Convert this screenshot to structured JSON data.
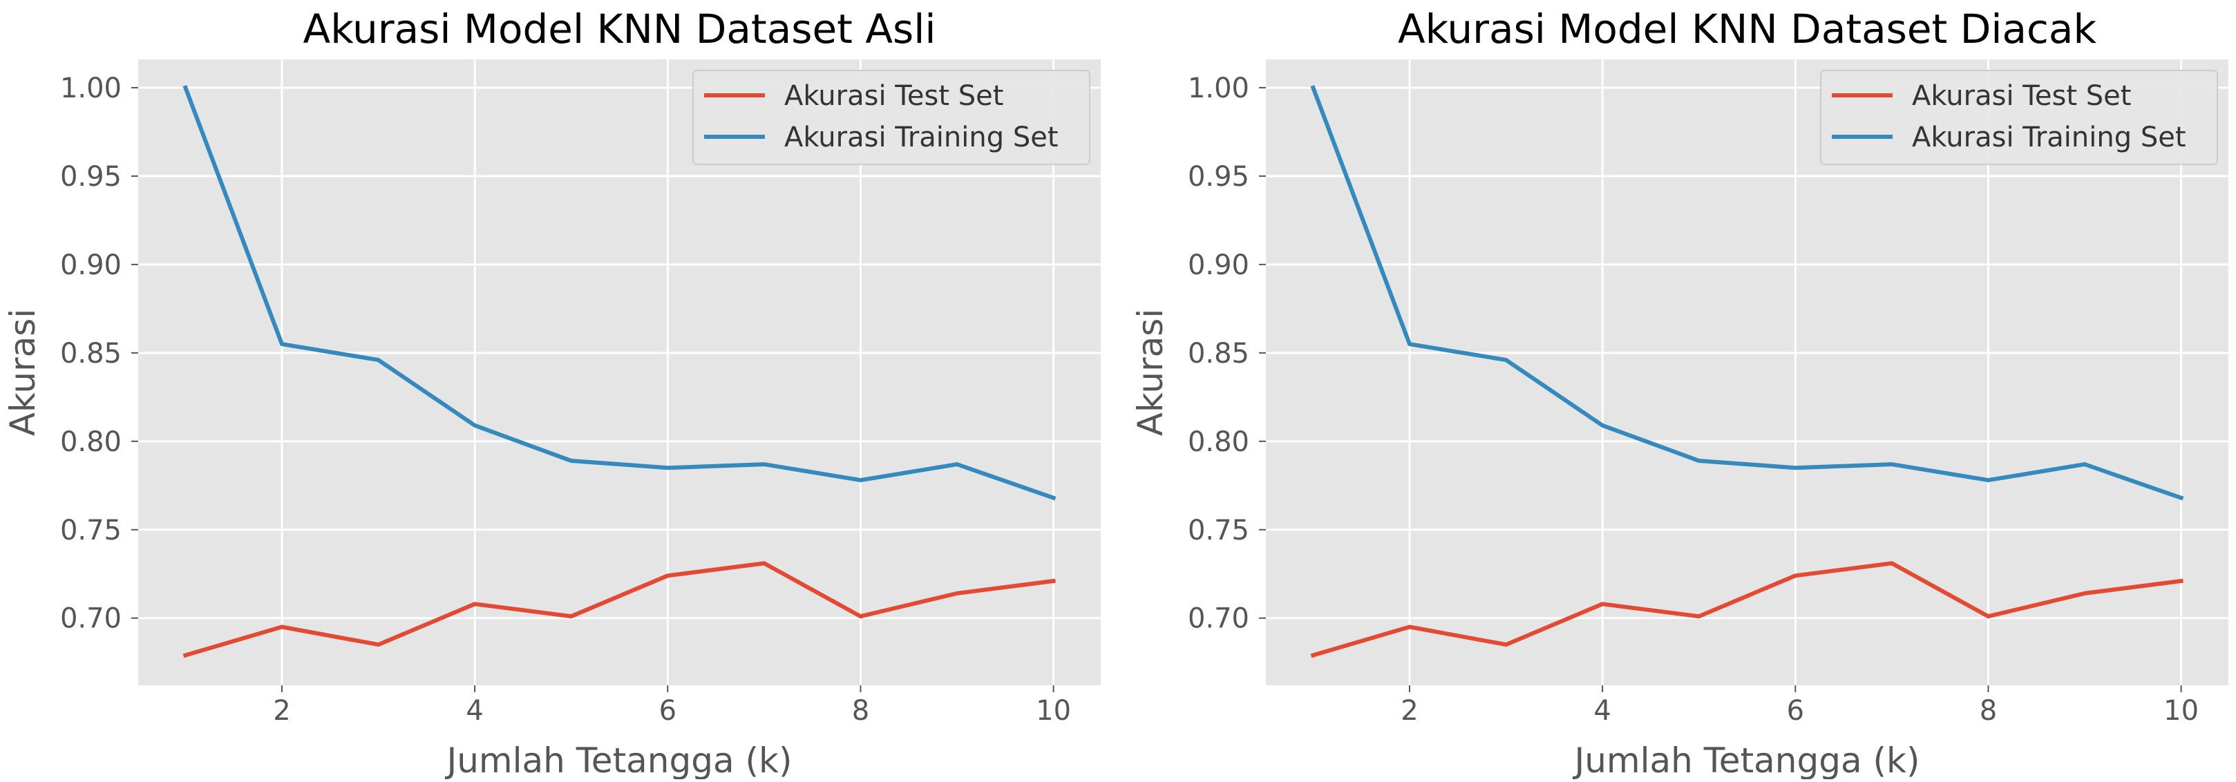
{
  "chart_data": [
    {
      "type": "line",
      "title": "Akurasi Model KNN Dataset Asli",
      "xlabel": "Jumlah Tetangga (k)",
      "ylabel": "Akurasi",
      "xlim": [
        0.51,
        10.49
      ],
      "ylim": [
        0.662,
        1.016
      ],
      "xticks": [
        2,
        4,
        6,
        8,
        10
      ],
      "xtick_labels": [
        "2",
        "4",
        "6",
        "8",
        "10"
      ],
      "yticks": [
        0.7,
        0.75,
        0.8,
        0.85,
        0.9,
        0.95,
        1.0
      ],
      "ytick_labels": [
        "0.70",
        "0.75",
        "0.80",
        "0.85",
        "0.90",
        "0.95",
        "1.00"
      ],
      "grid": true,
      "legend_position": "top-right",
      "x": [
        1,
        2,
        3,
        4,
        5,
        6,
        7,
        8,
        9,
        10
      ],
      "series": [
        {
          "name": "Akurasi Test Set",
          "color": "#e24a33",
          "values": [
            0.679,
            0.695,
            0.685,
            0.708,
            0.701,
            0.724,
            0.731,
            0.701,
            0.714,
            0.721
          ]
        },
        {
          "name": "Akurasi Training Set",
          "color": "#348abd",
          "values": [
            1.0,
            0.855,
            0.846,
            0.809,
            0.789,
            0.785,
            0.787,
            0.778,
            0.787,
            0.768
          ]
        }
      ]
    },
    {
      "type": "line",
      "title": "Akurasi Model KNN Dataset Diacak",
      "xlabel": "Jumlah Tetangga (k)",
      "ylabel": "Akurasi",
      "xlim": [
        0.51,
        10.49
      ],
      "ylim": [
        0.662,
        1.016
      ],
      "xticks": [
        2,
        4,
        6,
        8,
        10
      ],
      "xtick_labels": [
        "2",
        "4",
        "6",
        "8",
        "10"
      ],
      "yticks": [
        0.7,
        0.75,
        0.8,
        0.85,
        0.9,
        0.95,
        1.0
      ],
      "ytick_labels": [
        "0.70",
        "0.75",
        "0.80",
        "0.85",
        "0.90",
        "0.95",
        "1.00"
      ],
      "grid": true,
      "legend_position": "top-right",
      "x": [
        1,
        2,
        3,
        4,
        5,
        6,
        7,
        8,
        9,
        10
      ],
      "series": [
        {
          "name": "Akurasi Test Set",
          "color": "#e24a33",
          "values": [
            0.679,
            0.695,
            0.685,
            0.708,
            0.701,
            0.724,
            0.731,
            0.701,
            0.714,
            0.721
          ]
        },
        {
          "name": "Akurasi Training Set",
          "color": "#348abd",
          "values": [
            1.0,
            0.855,
            0.846,
            0.809,
            0.789,
            0.785,
            0.787,
            0.778,
            0.787,
            0.768
          ]
        }
      ]
    }
  ],
  "style": {
    "panel_background": "#e5e5e5",
    "grid_color": "#ffffff",
    "text_color": "#555555",
    "title_color": "#000000"
  }
}
